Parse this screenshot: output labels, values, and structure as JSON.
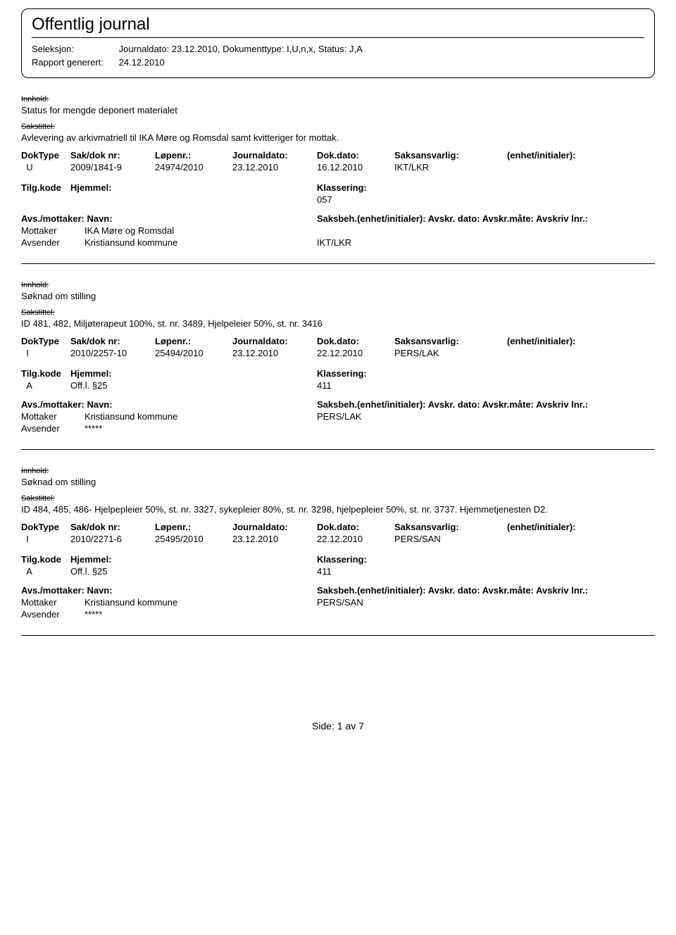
{
  "page": {
    "title": "Offentlig journal",
    "seleksjon_label": "Seleksjon:",
    "seleksjon_value": "Journaldato: 23.12.2010, Dokumenttype: I,U,n,x, Status: J,A",
    "rapport_label": "Rapport generert:",
    "rapport_value": "24.12.2010"
  },
  "labels": {
    "innhold": "Innhold:",
    "sakstittel": "Sakstittel:",
    "doktype": "DokType",
    "sakdok": "Sak/dok nr:",
    "lopenr": "Løpenr.:",
    "journaldato": "Journaldato:",
    "dokdato": "Dok.dato:",
    "saksansvarlig": "Saksansvarlig:",
    "enhet_initialer": "(enhet/initialer):",
    "tilgkode": "Tilg.kode",
    "hjemmel": "Hjemmel:",
    "klassering": "Klassering:",
    "avs_mottaker": "Avs./mottaker:",
    "navn": "Navn:",
    "saksbeh_line": "Saksbeh.(enhet/initialer): Avskr. dato: Avskr.måte: Avskriv lnr.:",
    "mottaker": "Mottaker",
    "avsender": "Avsender",
    "side": "Side:",
    "av": "av"
  },
  "entries": [
    {
      "innhold": "Status for mengde deponert materialet",
      "sakstittel": "Avlevering av arkivmatriell til IKA Møre og Romsdal samt kvitteriger for mottak.",
      "doktype": "U",
      "sakdok": "2009/1841-9",
      "lopenr": "24974/2010",
      "journaldato": "23.12.2010",
      "dokdato": "16.12.2010",
      "saksansvarlig": "IKT/LKR",
      "tilgkode": "",
      "hjemmel": "",
      "klassering": "057",
      "parties": [
        {
          "role": "Mottaker",
          "name": "IKA Møre og Romsdal",
          "sb": ""
        },
        {
          "role": "Avsender",
          "name": "Kristiansund kommune",
          "sb": "IKT/LKR"
        }
      ]
    },
    {
      "innhold": "Søknad om stilling",
      "sakstittel": "ID 481, 482, Miljøterapeut 100%, st. nr. 3489, Hjelpeleier 50%, st. nr. 3416",
      "doktype": "I",
      "sakdok": "2010/2257-10",
      "lopenr": "25494/2010",
      "journaldato": "23.12.2010",
      "dokdato": "22.12.2010",
      "saksansvarlig": "PERS/LAK",
      "tilgkode": "A",
      "hjemmel": "Off.l. §25",
      "klassering": "411",
      "parties": [
        {
          "role": "Mottaker",
          "name": "Kristiansund kommune",
          "sb": "PERS/LAK"
        },
        {
          "role": "Avsender",
          "name": "*****",
          "sb": ""
        }
      ]
    },
    {
      "innhold": "Søknad om stilling",
      "sakstittel": "ID 484, 485, 486- Hjelpepleier 50%, st. nr. 3327, sykepleier 80%, st. nr. 3298, hjelpepleier 50%, st. nr. 3737. Hjemmetjenesten D2.",
      "doktype": "I",
      "sakdok": "2010/2271-6",
      "lopenr": "25495/2010",
      "journaldato": "23.12.2010",
      "dokdato": "22.12.2010",
      "saksansvarlig": "PERS/SAN",
      "tilgkode": "A",
      "hjemmel": "Off.l. §25",
      "klassering": "411",
      "parties": [
        {
          "role": "Mottaker",
          "name": "Kristiansund kommune",
          "sb": "PERS/SAN"
        },
        {
          "role": "Avsender",
          "name": "*****",
          "sb": ""
        }
      ]
    }
  ],
  "footer": {
    "page": "1",
    "total": "7"
  }
}
